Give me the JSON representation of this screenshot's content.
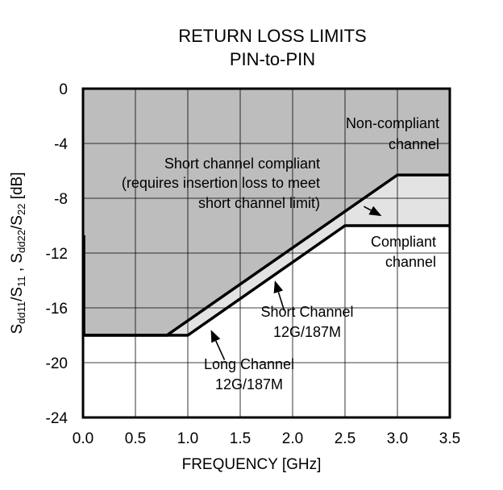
{
  "chart_data": {
    "type": "line",
    "title": "RETURN LOSS LIMITS",
    "subtitle": "PIN-to-PIN",
    "xlabel": "FREQUENCY [GHz]",
    "ylabel_parts": {
      "s_a": "S",
      "sub_a": "dd11",
      "slash_1": "/S",
      "sub_b": "11",
      "comma": " , S",
      "sub_c": "dd22",
      "slash_2": "/S",
      "sub_d": "22",
      "unit": " [dB]"
    },
    "xlim": [
      0,
      3.5
    ],
    "ylim": [
      -24,
      0
    ],
    "x_ticks": [
      0.0,
      0.5,
      1.0,
      1.5,
      2.0,
      2.5,
      3.0,
      3.5
    ],
    "x_tick_labels": [
      "0.0",
      "0.5",
      "1.0",
      "1.5",
      "2.0",
      "2.5",
      "3.0",
      "3.5"
    ],
    "y_ticks": [
      0,
      -4,
      -8,
      -12,
      -16,
      -20,
      -24
    ],
    "y_tick_labels": [
      "0",
      "-4",
      "-8",
      "-12",
      "-16",
      "-20",
      "-24"
    ],
    "grid": true,
    "series": [
      {
        "name": "Short Channel 12G/187M",
        "x": [
          0.0,
          0.8,
          3.0,
          3.5
        ],
        "y": [
          -18,
          -18,
          -6.3,
          -6.3
        ]
      },
      {
        "name": "Long Channel 12G/187M",
        "x": [
          0.0,
          1.0,
          2.5,
          3.5
        ],
        "y": [
          -18,
          -18,
          -10,
          -10
        ]
      }
    ],
    "low_freq_edge": {
      "x": [
        0.01,
        0.01
      ],
      "y": [
        -10.7,
        -18
      ]
    },
    "regions": {
      "non_compliant_color": "#bdbdbd",
      "short_compliant_color": "#e3e3e3",
      "compliant_color": "#ffffff"
    },
    "annotations": {
      "non_compliant": [
        "Non-compliant",
        "channel"
      ],
      "short_compliant": [
        "Short channel compliant",
        "(requires insertion loss to meet",
        "short channel limit)"
      ],
      "compliant": [
        "Compliant",
        "channel"
      ],
      "short_channel": [
        "Short Channel",
        "12G/187M"
      ],
      "long_channel": [
        "Long Channel",
        "12G/187M"
      ]
    },
    "arrows": [
      {
        "name": "short-compliant-arrow",
        "from": [
          2.68,
          -8.6
        ],
        "to": [
          2.85,
          -9.3
        ]
      },
      {
        "name": "short-channel-arrow",
        "from": [
          1.92,
          -16.2
        ],
        "to": [
          1.83,
          -14.0
        ]
      },
      {
        "name": "long-channel-arrow",
        "from": [
          1.35,
          -19.8
        ],
        "to": [
          1.22,
          -17.6
        ]
      }
    ],
    "colors": {
      "line": "#000000",
      "grid": "#000000",
      "frame": "#000000"
    }
  }
}
